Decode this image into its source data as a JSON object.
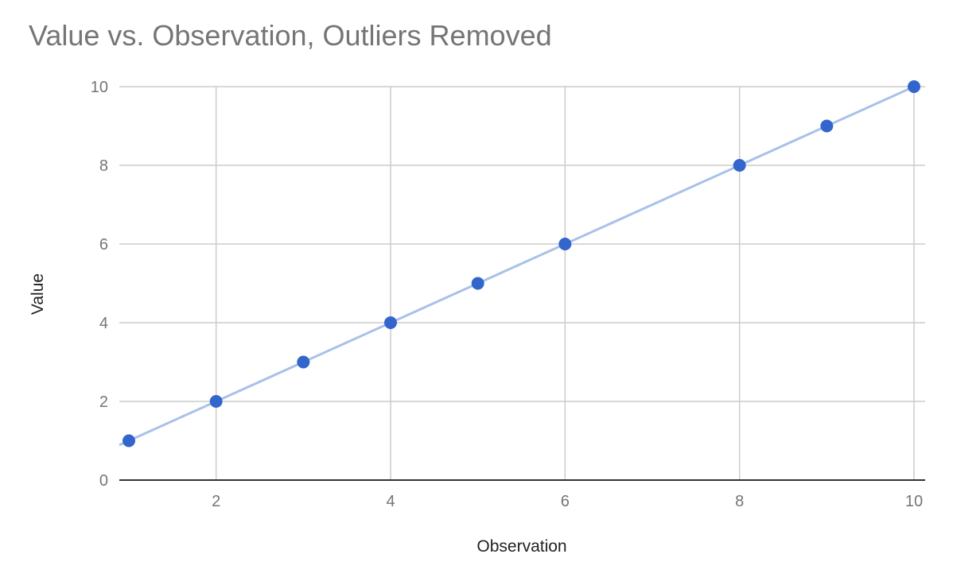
{
  "chart_data": {
    "type": "scatter",
    "title": "Value vs. Observation, Outliers Removed",
    "xlabel": "Observation",
    "ylabel": "Value",
    "xlim": [
      1,
      10
    ],
    "ylim": [
      0,
      10
    ],
    "xticks": [
      2,
      4,
      6,
      8,
      10
    ],
    "yticks": [
      0,
      2,
      4,
      6,
      8,
      10
    ],
    "grid": true,
    "legend": "none",
    "series": [
      {
        "x": [
          1,
          2,
          3,
          4,
          5,
          6,
          8,
          9,
          10
        ],
        "y": [
          1,
          2,
          3,
          4,
          5,
          6,
          8,
          9,
          10
        ],
        "color": "#3366cc"
      }
    ],
    "trendline": {
      "type": "linear",
      "color": "#a9c1ea"
    }
  }
}
